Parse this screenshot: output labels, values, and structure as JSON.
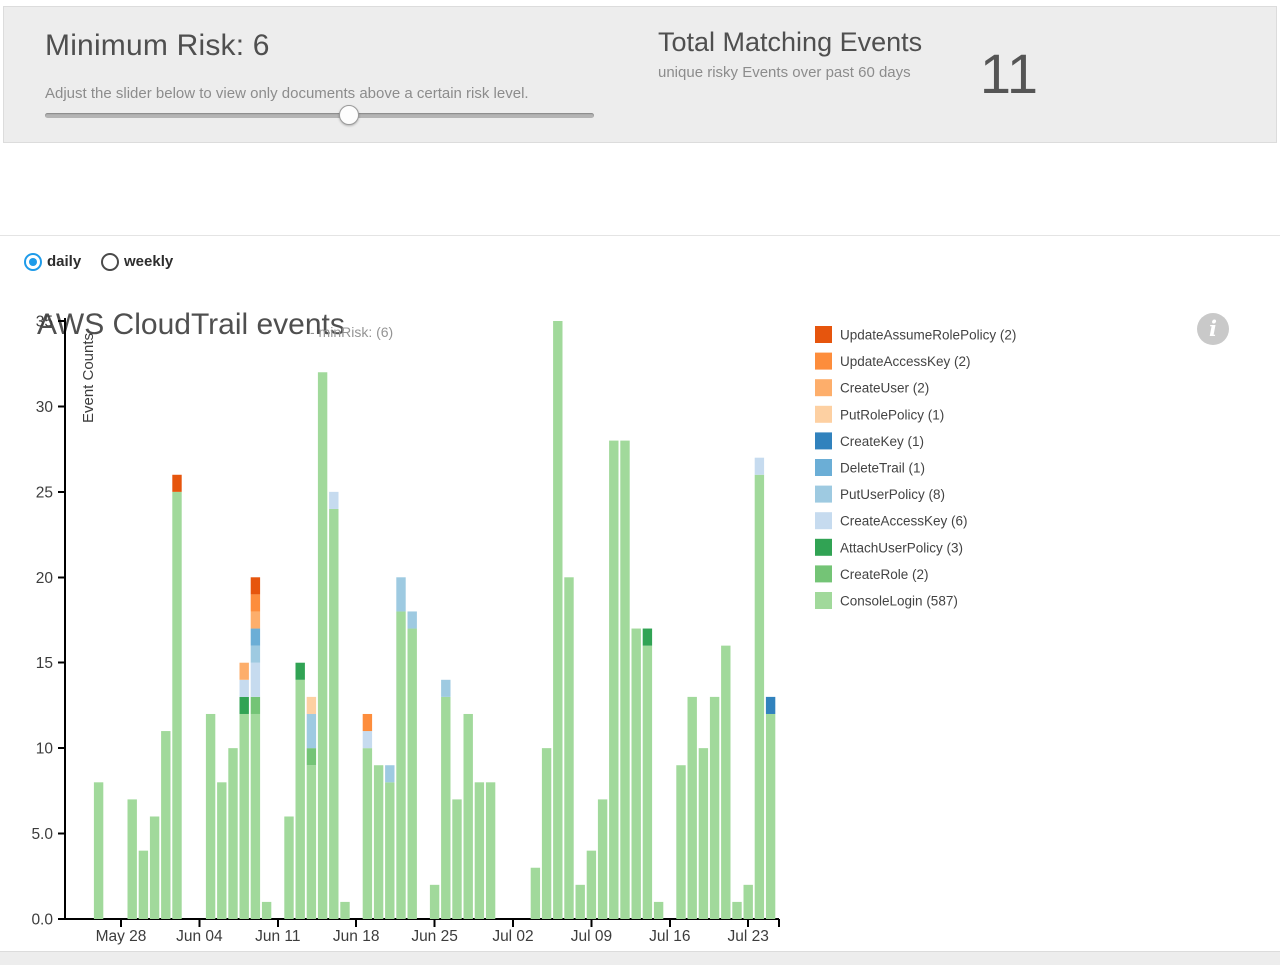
{
  "risk_panel": {
    "title": "Minimum Risk: 6",
    "subtitle": "Adjust the slider below to view only documents above a certain risk level.",
    "slider": {
      "value": 6,
      "position_pct": 55.4
    }
  },
  "totals_panel": {
    "title": "Total Matching Events",
    "subtitle": "unique risky Events over past 60 days",
    "value": "11"
  },
  "chart_header": {
    "title": "AWS CloudTrail events",
    "suffix": "- minRisk: (6)",
    "info_glyph": "i"
  },
  "controls": {
    "options": [
      {
        "label": "daily",
        "selected": true
      },
      {
        "label": "weekly",
        "selected": false
      }
    ]
  },
  "colors": {
    "accent_blue": "#1e9be9",
    "panel_gray": "#ededed"
  },
  "chart_data": {
    "type": "bar",
    "stacked": true,
    "title": "",
    "xlabel": "",
    "ylabel": "Event Counts",
    "ylim": [
      0,
      35
    ],
    "grid": false,
    "legend_position": "right",
    "yticks": [
      {
        "value": 0,
        "label": "0.0"
      },
      {
        "value": 5,
        "label": "5.0"
      },
      {
        "value": 10,
        "label": "10"
      },
      {
        "value": 15,
        "label": "15"
      },
      {
        "value": 20,
        "label": "20"
      },
      {
        "value": 25,
        "label": "25"
      },
      {
        "value": 30,
        "label": "30"
      },
      {
        "value": 35,
        "label": "35"
      }
    ],
    "timeline_start": "May 25",
    "xticks": [
      {
        "day_index": 3,
        "label": "May 28"
      },
      {
        "day_index": 10,
        "label": "Jun 04"
      },
      {
        "day_index": 17,
        "label": "Jun 11"
      },
      {
        "day_index": 24,
        "label": "Jun 18"
      },
      {
        "day_index": 31,
        "label": "Jun 25"
      },
      {
        "day_index": 38,
        "label": "Jul 02"
      },
      {
        "day_index": 45,
        "label": "Jul 09"
      },
      {
        "day_index": 52,
        "label": "Jul 16"
      },
      {
        "day_index": 59,
        "label": "Jul 23"
      }
    ],
    "series": [
      {
        "name": "UpdateAssumeRolePolicy",
        "total": 2,
        "color": "#e6550d"
      },
      {
        "name": "UpdateAccessKey",
        "total": 2,
        "color": "#fd8d3c"
      },
      {
        "name": "CreateUser",
        "total": 2,
        "color": "#fdae6b"
      },
      {
        "name": "PutRolePolicy",
        "total": 1,
        "color": "#fdd0a2"
      },
      {
        "name": "CreateKey",
        "total": 1,
        "color": "#3182bd"
      },
      {
        "name": "DeleteTrail",
        "total": 1,
        "color": "#6baed6"
      },
      {
        "name": "PutUserPolicy",
        "total": 8,
        "color": "#9ecae1"
      },
      {
        "name": "CreateAccessKey",
        "total": 6,
        "color": "#c6dbef"
      },
      {
        "name": "AttachUserPolicy",
        "total": 3,
        "color": "#31a354"
      },
      {
        "name": "CreateRole",
        "total": 2,
        "color": "#74c476"
      },
      {
        "name": "ConsoleLogin",
        "total": 587,
        "color": "#a1d99b"
      }
    ],
    "bars": [
      {
        "date": "May 26",
        "day_index": 1,
        "segments": {
          "ConsoleLogin": 8
        }
      },
      {
        "date": "May 29",
        "day_index": 4,
        "segments": {
          "ConsoleLogin": 7
        }
      },
      {
        "date": "May 30",
        "day_index": 5,
        "segments": {
          "ConsoleLogin": 4
        }
      },
      {
        "date": "May 31",
        "day_index": 6,
        "segments": {
          "ConsoleLogin": 6
        }
      },
      {
        "date": "Jun 01",
        "day_index": 7,
        "segments": {
          "ConsoleLogin": 11
        }
      },
      {
        "date": "Jun 02",
        "day_index": 8,
        "segments": {
          "ConsoleLogin": 25,
          "UpdateAssumeRolePolicy": 1
        }
      },
      {
        "date": "Jun 05",
        "day_index": 11,
        "segments": {
          "ConsoleLogin": 12
        }
      },
      {
        "date": "Jun 06",
        "day_index": 12,
        "segments": {
          "ConsoleLogin": 8
        }
      },
      {
        "date": "Jun 07",
        "day_index": 13,
        "segments": {
          "ConsoleLogin": 10
        }
      },
      {
        "date": "Jun 08",
        "day_index": 14,
        "segments": {
          "ConsoleLogin": 12,
          "AttachUserPolicy": 1,
          "CreateAccessKey": 1,
          "CreateUser": 1
        }
      },
      {
        "date": "Jun 09",
        "day_index": 15,
        "segments": {
          "ConsoleLogin": 12,
          "CreateRole": 1,
          "CreateAccessKey": 2,
          "PutUserPolicy": 1,
          "DeleteTrail": 1,
          "CreateUser": 1,
          "UpdateAccessKey": 1,
          "UpdateAssumeRolePolicy": 1
        }
      },
      {
        "date": "Jun 10",
        "day_index": 16,
        "segments": {
          "ConsoleLogin": 1
        }
      },
      {
        "date": "Jun 12",
        "day_index": 18,
        "segments": {
          "ConsoleLogin": 6
        }
      },
      {
        "date": "Jun 13",
        "day_index": 19,
        "segments": {
          "ConsoleLogin": 14,
          "AttachUserPolicy": 1
        }
      },
      {
        "date": "Jun 14",
        "day_index": 20,
        "segments": {
          "ConsoleLogin": 9,
          "CreateRole": 1,
          "PutUserPolicy": 2,
          "PutRolePolicy": 1
        }
      },
      {
        "date": "Jun 15",
        "day_index": 21,
        "segments": {
          "ConsoleLogin": 32
        }
      },
      {
        "date": "Jun 16",
        "day_index": 22,
        "segments": {
          "ConsoleLogin": 24,
          "CreateAccessKey": 1
        }
      },
      {
        "date": "Jun 17",
        "day_index": 23,
        "segments": {
          "ConsoleLogin": 1
        }
      },
      {
        "date": "Jun 19",
        "day_index": 25,
        "segments": {
          "ConsoleLogin": 10,
          "CreateAccessKey": 1,
          "UpdateAccessKey": 1
        }
      },
      {
        "date": "Jun 20",
        "day_index": 26,
        "segments": {
          "ConsoleLogin": 9
        }
      },
      {
        "date": "Jun 21",
        "day_index": 27,
        "segments": {
          "ConsoleLogin": 8,
          "PutUserPolicy": 1
        }
      },
      {
        "date": "Jun 22",
        "day_index": 28,
        "segments": {
          "ConsoleLogin": 18,
          "PutUserPolicy": 2
        }
      },
      {
        "date": "Jun 23",
        "day_index": 29,
        "segments": {
          "ConsoleLogin": 17,
          "PutUserPolicy": 1
        }
      },
      {
        "date": "Jun 25",
        "day_index": 31,
        "segments": {
          "ConsoleLogin": 2
        }
      },
      {
        "date": "Jun 26",
        "day_index": 32,
        "segments": {
          "ConsoleLogin": 13,
          "PutUserPolicy": 1
        }
      },
      {
        "date": "Jun 27",
        "day_index": 33,
        "segments": {
          "ConsoleLogin": 7
        }
      },
      {
        "date": "Jun 28",
        "day_index": 34,
        "segments": {
          "ConsoleLogin": 12
        }
      },
      {
        "date": "Jun 29",
        "day_index": 35,
        "segments": {
          "ConsoleLogin": 8
        }
      },
      {
        "date": "Jun 30",
        "day_index": 36,
        "segments": {
          "ConsoleLogin": 8
        }
      },
      {
        "date": "Jul 04",
        "day_index": 40,
        "segments": {
          "ConsoleLogin": 3
        }
      },
      {
        "date": "Jul 05",
        "day_index": 41,
        "segments": {
          "ConsoleLogin": 10
        }
      },
      {
        "date": "Jul 06",
        "day_index": 42,
        "segments": {
          "ConsoleLogin": 35
        }
      },
      {
        "date": "Jul 07",
        "day_index": 43,
        "segments": {
          "ConsoleLogin": 20
        }
      },
      {
        "date": "Jul 08",
        "day_index": 44,
        "segments": {
          "ConsoleLogin": 2
        }
      },
      {
        "date": "Jul 09",
        "day_index": 45,
        "segments": {
          "ConsoleLogin": 4
        }
      },
      {
        "date": "Jul 10",
        "day_index": 46,
        "segments": {
          "ConsoleLogin": 7
        }
      },
      {
        "date": "Jul 11",
        "day_index": 47,
        "segments": {
          "ConsoleLogin": 28
        }
      },
      {
        "date": "Jul 12",
        "day_index": 48,
        "segments": {
          "ConsoleLogin": 28
        }
      },
      {
        "date": "Jul 13",
        "day_index": 49,
        "segments": {
          "ConsoleLogin": 17
        }
      },
      {
        "date": "Jul 14",
        "day_index": 50,
        "segments": {
          "ConsoleLogin": 16,
          "AttachUserPolicy": 1
        }
      },
      {
        "date": "Jul 15",
        "day_index": 51,
        "segments": {
          "ConsoleLogin": 1
        }
      },
      {
        "date": "Jul 17",
        "day_index": 53,
        "segments": {
          "ConsoleLogin": 9
        }
      },
      {
        "date": "Jul 18",
        "day_index": 54,
        "segments": {
          "ConsoleLogin": 13
        }
      },
      {
        "date": "Jul 19",
        "day_index": 55,
        "segments": {
          "ConsoleLogin": 10
        }
      },
      {
        "date": "Jul 20",
        "day_index": 56,
        "segments": {
          "ConsoleLogin": 13
        }
      },
      {
        "date": "Jul 21",
        "day_index": 57,
        "segments": {
          "ConsoleLogin": 16
        }
      },
      {
        "date": "Jul 22",
        "day_index": 58,
        "segments": {
          "ConsoleLogin": 1
        }
      },
      {
        "date": "Jul 23",
        "day_index": 59,
        "segments": {
          "ConsoleLogin": 2
        }
      },
      {
        "date": "Jul 24",
        "day_index": 60,
        "segments": {
          "ConsoleLogin": 26,
          "CreateAccessKey": 1
        }
      },
      {
        "date": "Jul 25",
        "day_index": 61,
        "segments": {
          "ConsoleLogin": 12,
          "CreateKey": 1
        }
      }
    ]
  }
}
